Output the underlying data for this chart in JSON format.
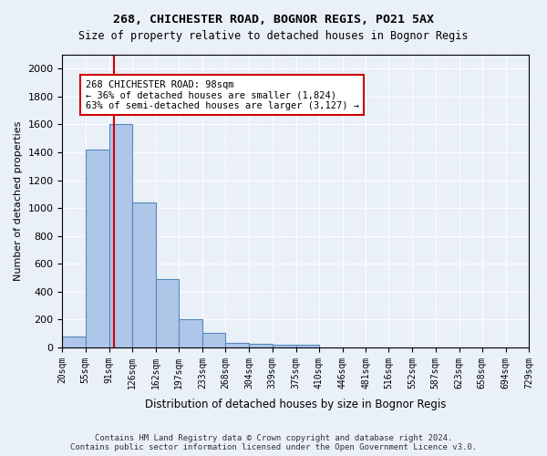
{
  "title1": "268, CHICHESTER ROAD, BOGNOR REGIS, PO21 5AX",
  "title2": "Size of property relative to detached houses in Bognor Regis",
  "xlabel": "Distribution of detached houses by size in Bognor Regis",
  "ylabel": "Number of detached properties",
  "bin_edges": [
    20,
    55,
    91,
    126,
    162,
    197,
    233,
    268,
    304,
    339,
    375,
    410,
    446,
    481,
    516,
    552,
    587,
    623,
    658,
    694,
    729
  ],
  "bar_heights": [
    80,
    1420,
    1600,
    1040,
    490,
    200,
    105,
    35,
    25,
    20,
    20,
    0,
    0,
    0,
    0,
    0,
    0,
    0,
    0,
    0
  ],
  "bar_color": "#aec6e8",
  "bar_edge_color": "#5588bb",
  "property_size": 98,
  "vline_color": "#cc0000",
  "annotation_text": "268 CHICHESTER ROAD: 98sqm\n← 36% of detached houses are smaller (1,824)\n63% of semi-detached houses are larger (3,127) →",
  "annotation_box_color": "#ffffff",
  "annotation_box_edge": "#cc0000",
  "ylim": [
    0,
    2100
  ],
  "yticks": [
    0,
    200,
    400,
    600,
    800,
    1000,
    1200,
    1400,
    1600,
    1800,
    2000
  ],
  "background_color": "#eaf0f8",
  "footer": "Contains HM Land Registry data © Crown copyright and database right 2024.\nContains public sector information licensed under the Open Government Licence v3.0."
}
